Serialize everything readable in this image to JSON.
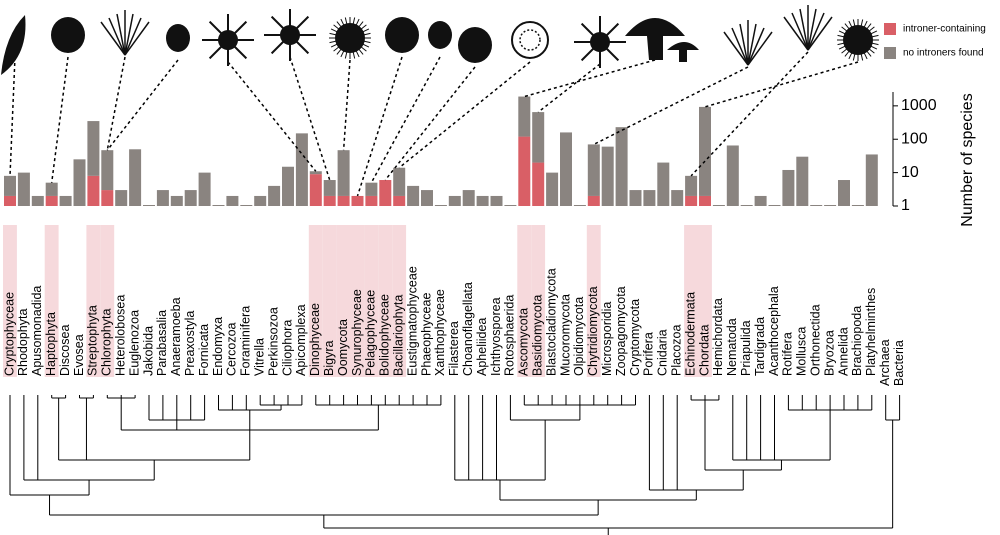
{
  "chart_data": {
    "type": "bar",
    "categories": [
      "Cryptophyceae",
      "Rhodophyta",
      "Apusomonadida",
      "Haptophyta",
      "Discosea",
      "Evosea",
      "Streptophyta",
      "Chlorophyta",
      "Heterolobosea",
      "Euglenozoa",
      "Jakobida",
      "Parabasalia",
      "Anaeramoeba",
      "Preaxostyla",
      "Fornicata",
      "Endomyxa",
      "Cercozoa",
      "Foraminifera",
      "Vitrella",
      "Perkinsozoa",
      "Ciliophora",
      "Apicomplexa",
      "Dinophyceae",
      "Bigyra",
      "Oomycota",
      "Synurophyceae",
      "Pelagophyceae",
      "Bolidophyceae",
      "Bacillariophyta",
      "Eustigmatophyceae",
      "Phaeophyceae",
      "Xanthophyceae",
      "Filasterea",
      "Choanoflagellata",
      "Apheliidea",
      "Ichthyosporea",
      "Rotosphaerida",
      "Ascomycota",
      "Basidiomycota",
      "Blastocladiomycota",
      "Mucoromycota",
      "Olpidiomycota",
      "Chytridiomycota",
      "Microsporidia",
      "Zoopagomycota",
      "Cryptomycota",
      "Porifera",
      "Cnidaria",
      "Placozoa",
      "Echinodermata",
      "Chordata",
      "Hemichordata",
      "Nematoda",
      "Priapulida",
      "Tardigrada",
      "Acanthocephala",
      "Rotifera",
      "Mollusca",
      "Orthonectida",
      "Bryozoa",
      "Annelida",
      "Brachiopoda",
      "Platyhelminthes",
      "Archaea",
      "Bacteria"
    ],
    "series": [
      {
        "name": "introner-containing",
        "color": "#d95f66",
        "values": [
          2,
          null,
          null,
          2,
          null,
          null,
          8,
          3,
          null,
          null,
          null,
          null,
          null,
          null,
          null,
          null,
          null,
          null,
          null,
          null,
          null,
          null,
          9,
          2,
          2,
          2,
          2,
          6,
          2,
          null,
          null,
          null,
          null,
          null,
          null,
          null,
          null,
          120,
          20,
          null,
          null,
          null,
          2,
          null,
          null,
          null,
          null,
          null,
          null,
          2,
          2,
          null,
          null,
          null,
          null,
          null,
          null,
          null,
          null,
          null,
          null,
          null,
          null,
          null,
          null
        ]
      },
      {
        "name": "no introners found",
        "color": "#8a8480",
        "values": [
          6,
          10,
          2,
          3,
          2,
          25,
          342,
          44,
          3,
          50,
          1,
          3,
          2,
          3,
          10,
          1,
          2,
          1,
          2,
          4,
          15,
          150,
          2,
          4,
          45,
          null,
          3,
          null,
          12,
          4,
          3,
          1,
          2,
          3,
          2,
          2,
          1,
          1780,
          630,
          10,
          160,
          1,
          68,
          60,
          230,
          3,
          3,
          20,
          3,
          6,
          928,
          1,
          65,
          1,
          2,
          1,
          12,
          30,
          1,
          1,
          6,
          1,
          35,
          null,
          null
        ]
      }
    ],
    "y_label": "Number of species",
    "ylim": [
      1,
      2600
    ],
    "yticks": [
      1,
      10,
      100,
      1000
    ],
    "log_scale": true,
    "legend": "top-right"
  }
}
